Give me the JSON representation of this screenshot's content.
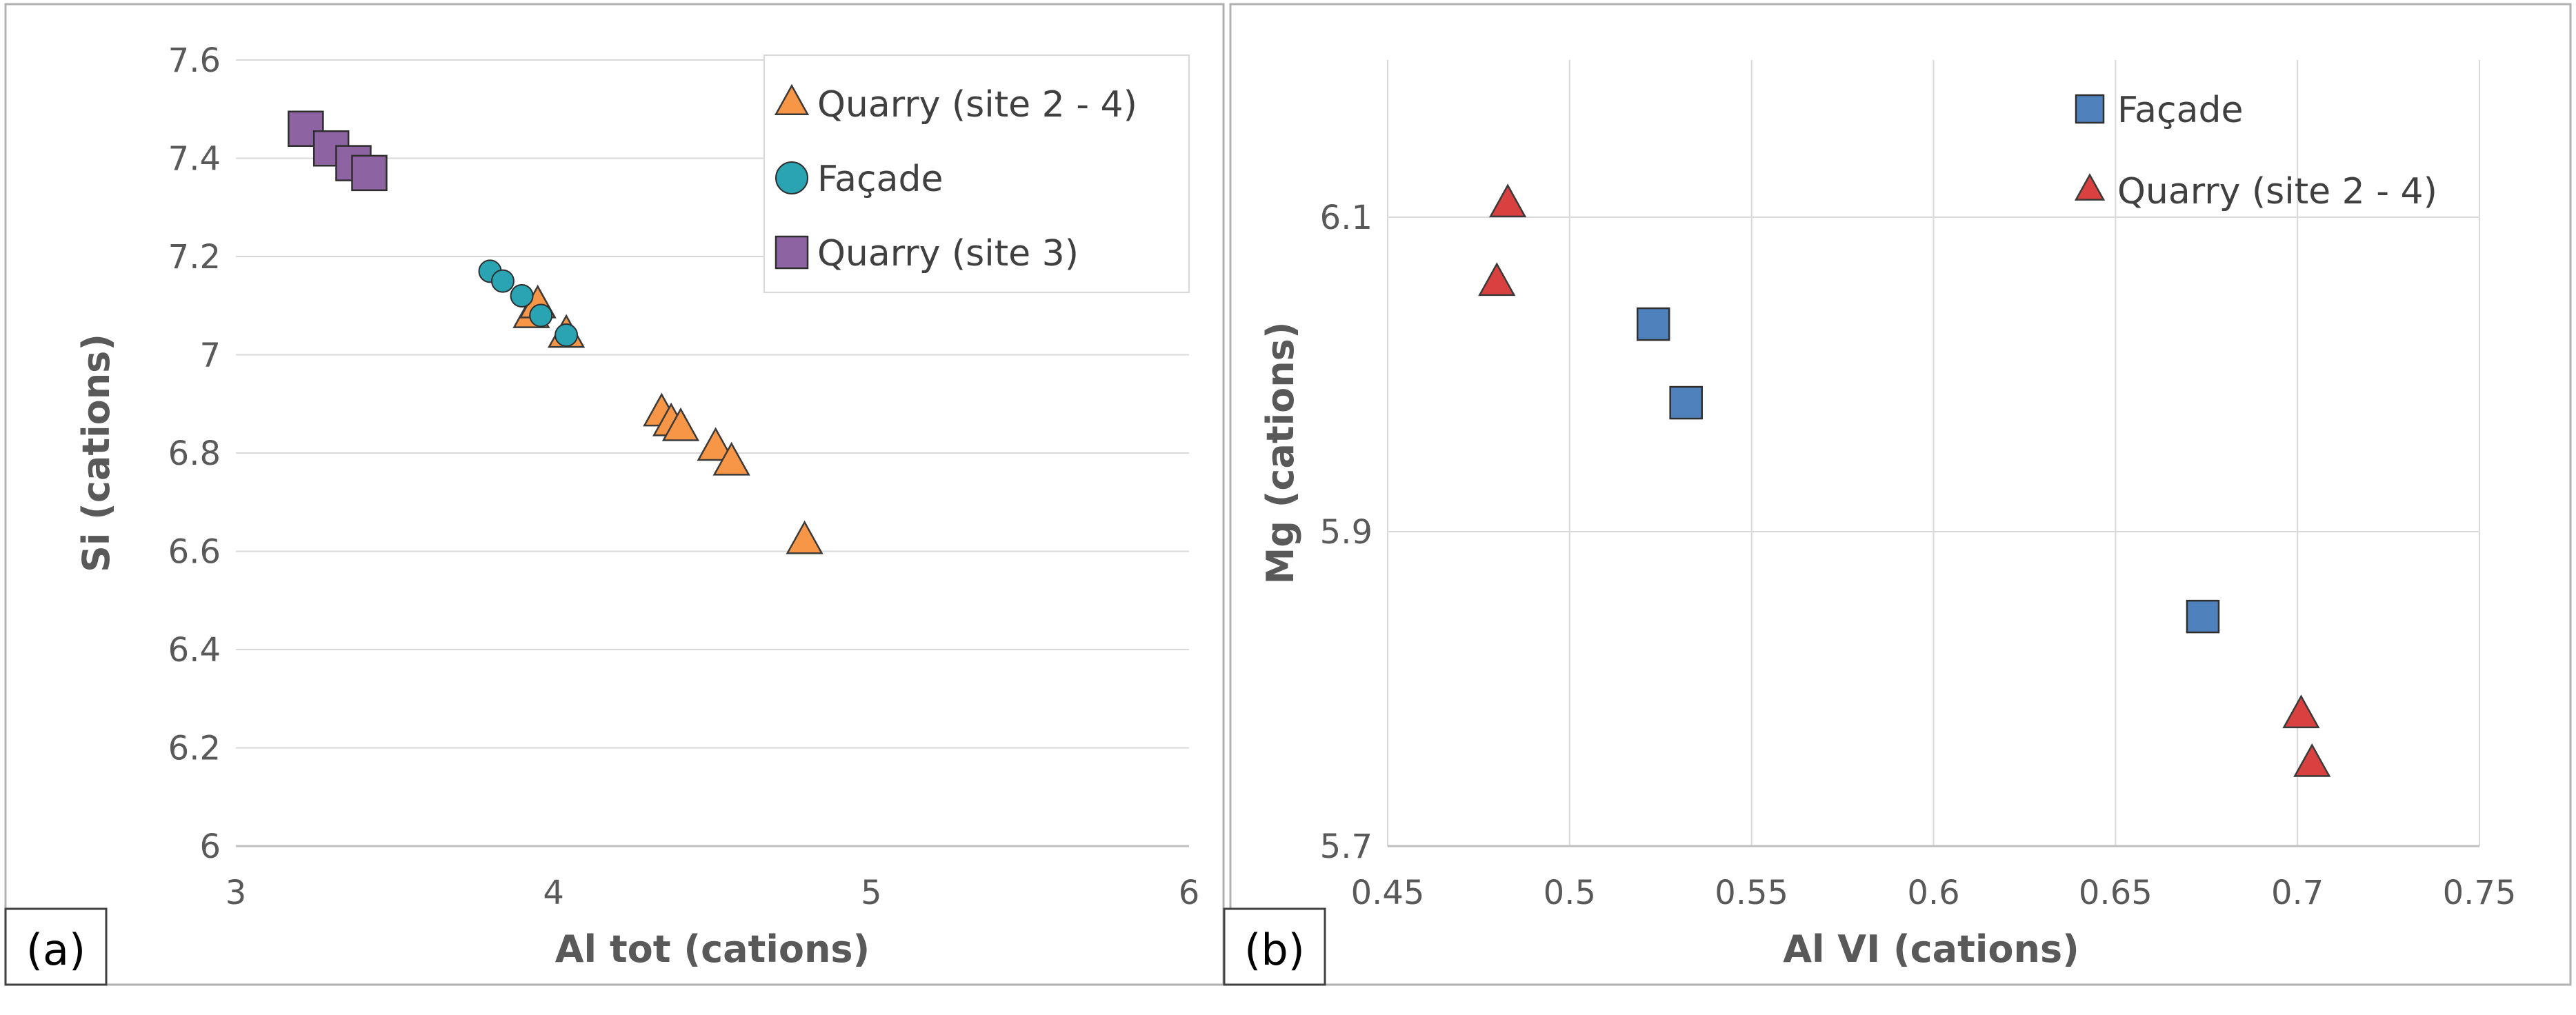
{
  "chart_data": [
    {
      "panel_label": "(a)",
      "type": "scatter",
      "xlabel": "Al tot (cations)",
      "ylabel": "Si (cations)",
      "xlim": [
        3,
        6
      ],
      "ylim": [
        6,
        7.6
      ],
      "xticks": [
        3,
        4,
        5,
        6
      ],
      "yticks": [
        6,
        6.2,
        6.4,
        6.6,
        6.8,
        7,
        7.2,
        7.4,
        7.6
      ],
      "ytick_labels": [
        "6",
        "6.2",
        "6.4",
        "6.6",
        "6.8",
        "7",
        "7.2",
        "7.4",
        "7.6"
      ],
      "grid": "horizontal",
      "legend_position": "top-right",
      "series": [
        {
          "name": "Quarry (site 2 - 4)",
          "marker": "triangle",
          "color": "#F79646",
          "points": [
            [
              3.93,
              7.08
            ],
            [
              3.95,
              7.1
            ],
            [
              4.04,
              7.04
            ],
            [
              4.34,
              6.88
            ],
            [
              4.37,
              6.86
            ],
            [
              4.4,
              6.85
            ],
            [
              4.51,
              6.81
            ],
            [
              4.56,
              6.78
            ],
            [
              4.79,
              6.62
            ]
          ]
        },
        {
          "name": "Façade",
          "marker": "circle",
          "color": "#2AA3B3",
          "points": [
            [
              3.8,
              7.17
            ],
            [
              3.84,
              7.15
            ],
            [
              3.9,
              7.12
            ],
            [
              3.96,
              7.08
            ],
            [
              4.04,
              7.04
            ]
          ]
        },
        {
          "name": "Quarry (site 3)",
          "marker": "square",
          "color": "#8E63A2",
          "points": [
            [
              3.22,
              7.46
            ],
            [
              3.3,
              7.42
            ],
            [
              3.37,
              7.39
            ],
            [
              3.42,
              7.37
            ]
          ]
        }
      ]
    },
    {
      "panel_label": "(b)",
      "type": "scatter",
      "xlabel": "Al VI (cations)",
      "ylabel": "Mg (cations)",
      "xlim": [
        0.45,
        0.75
      ],
      "ylim": [
        5.7,
        6.2
      ],
      "xticks": [
        0.45,
        0.5,
        0.55,
        0.6,
        0.65,
        0.7,
        0.75
      ],
      "xtick_labels": [
        "0.45",
        "0.5",
        "0.55",
        "0.6",
        "0.65",
        "0.7",
        "0.75"
      ],
      "yticks": [
        5.7,
        5.9,
        6.1
      ],
      "ytick_labels": [
        "5.7",
        "5.9",
        "6.1"
      ],
      "grid": "major",
      "legend_position": "top-right",
      "series": [
        {
          "name": "Façade",
          "marker": "square",
          "color": "#4F81BD",
          "points": [
            [
              0.523,
              6.032
            ],
            [
              0.532,
              5.982
            ],
            [
              0.674,
              5.846
            ]
          ]
        },
        {
          "name": "Quarry (site 2 - 4)",
          "marker": "triangle",
          "color": "#D94040",
          "points": [
            [
              0.483,
              6.108
            ],
            [
              0.48,
              6.058
            ],
            [
              0.701,
              5.783
            ],
            [
              0.704,
              5.752
            ]
          ]
        }
      ]
    }
  ]
}
